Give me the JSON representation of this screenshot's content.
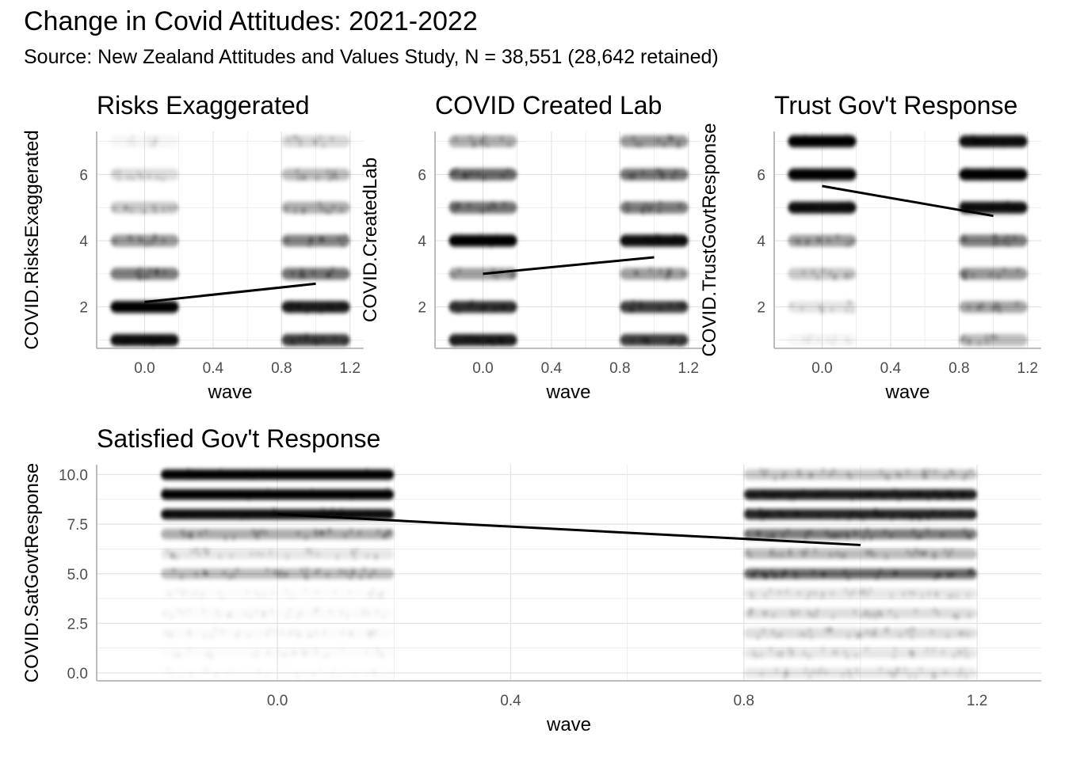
{
  "title": "Change in Covid Attitudes: 2021-2022",
  "subtitle": "Source: New Zealand Attitudes and Values Study, N = 38,551  (28,642 retained)",
  "chart_data": [
    {
      "type": "scatter",
      "title": "Risks Exaggerated",
      "xlabel": "wave",
      "ylabel": "COVID.RisksExaggerated",
      "xlim": [
        -0.28,
        1.28
      ],
      "ylim": [
        0.75,
        7.3
      ],
      "xticks": [
        0.0,
        0.4,
        0.8,
        1.2
      ],
      "xtick_labels": [
        "0.0",
        "0.4",
        "0.8",
        "1.2"
      ],
      "yticks": [
        2,
        4,
        6
      ],
      "ytick_labels": [
        "2",
        "4",
        "6"
      ],
      "levels": [
        1,
        2,
        3,
        4,
        5,
        6,
        7
      ],
      "density_wave0": [
        0.95,
        1.0,
        0.7,
        0.62,
        0.45,
        0.35,
        0.18
      ],
      "density_wave1": [
        0.85,
        0.92,
        0.72,
        0.68,
        0.55,
        0.5,
        0.38
      ],
      "trend": {
        "x": [
          0,
          1
        ],
        "y": [
          2.15,
          2.7
        ]
      }
    },
    {
      "type": "scatter",
      "title": "COVID Created Lab",
      "xlabel": "wave",
      "ylabel": "COVID.CreatedLab",
      "xlim": [
        -0.28,
        1.28
      ],
      "ylim": [
        0.75,
        7.3
      ],
      "xticks": [
        0.0,
        0.4,
        0.8,
        1.2
      ],
      "xtick_labels": [
        "0.0",
        "0.4",
        "0.8",
        "1.2"
      ],
      "yticks": [
        2,
        4,
        6
      ],
      "ytick_labels": [
        "2",
        "4",
        "6"
      ],
      "levels": [
        1,
        2,
        3,
        4,
        5,
        6,
        7
      ],
      "density_wave0": [
        0.92,
        0.88,
        0.6,
        0.98,
        0.72,
        0.75,
        0.55
      ],
      "density_wave1": [
        0.85,
        0.85,
        0.6,
        0.95,
        0.7,
        0.72,
        0.62
      ],
      "trend": {
        "x": [
          0,
          1
        ],
        "y": [
          3.0,
          3.5
        ]
      }
    },
    {
      "type": "scatter",
      "title": "Trust Gov't Response",
      "xlabel": "wave",
      "ylabel": "COVID.TrustGovtResponse",
      "xlim": [
        -0.28,
        1.28
      ],
      "ylim": [
        0.75,
        7.3
      ],
      "xticks": [
        0.0,
        0.4,
        0.8,
        1.2
      ],
      "xtick_labels": [
        "0.0",
        "0.4",
        "0.8",
        "1.2"
      ],
      "yticks": [
        2,
        4,
        6
      ],
      "ytick_labels": [
        "2",
        "4",
        "6"
      ],
      "levels": [
        1,
        2,
        3,
        4,
        5,
        6,
        7
      ],
      "density_wave0": [
        0.18,
        0.32,
        0.45,
        0.6,
        0.95,
        1.0,
        0.98
      ],
      "density_wave1": [
        0.5,
        0.58,
        0.62,
        0.7,
        0.95,
        1.0,
        0.95
      ],
      "trend": {
        "x": [
          0,
          1
        ],
        "y": [
          5.65,
          4.75
        ]
      }
    },
    {
      "type": "scatter",
      "title": "Satisfied Gov't Response",
      "xlabel": "wave",
      "ylabel": "COVID.SatGovtResponse",
      "xlim": [
        -0.31,
        1.31
      ],
      "ylim": [
        -0.4,
        10.5
      ],
      "xticks": [
        0.0,
        0.4,
        0.8,
        1.2
      ],
      "xtick_labels": [
        "0.0",
        "0.4",
        "0.8",
        "1.2"
      ],
      "yticks": [
        0.0,
        2.5,
        5.0,
        7.5,
        10.0
      ],
      "ytick_labels": [
        "0.0",
        "2.5",
        "5.0",
        "7.5",
        "10.0"
      ],
      "levels": [
        0,
        1,
        2,
        3,
        4,
        5,
        6,
        7,
        8,
        9,
        10
      ],
      "density_wave0": [
        0.07,
        0.1,
        0.12,
        0.12,
        0.1,
        0.5,
        0.3,
        0.55,
        0.95,
        1.0,
        1.0
      ],
      "density_wave1": [
        0.3,
        0.3,
        0.35,
        0.35,
        0.3,
        0.75,
        0.5,
        0.7,
        0.9,
        0.92,
        0.45
      ],
      "trend": {
        "x": [
          0,
          1
        ],
        "y": [
          8.0,
          6.45
        ]
      }
    }
  ]
}
